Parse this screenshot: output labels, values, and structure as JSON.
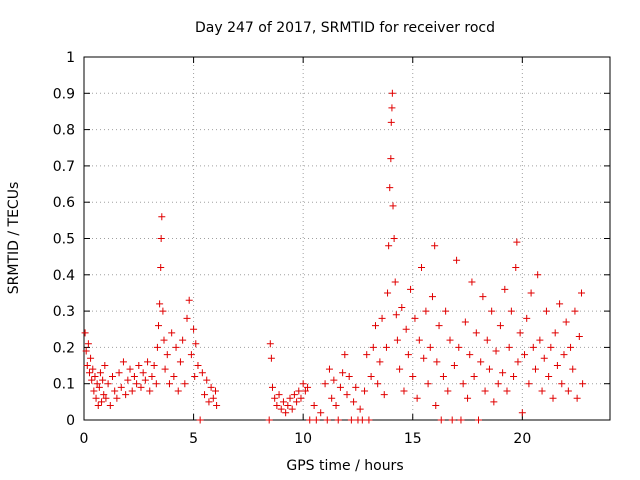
{
  "chart_data": {
    "type": "scatter",
    "title": "Day 247 of 2017, SRMTID for receiver rocd",
    "xlabel": "GPS time / hours",
    "ylabel": "SRMTID / TECUs",
    "xlim": [
      0,
      24
    ],
    "ylim": [
      0,
      1
    ],
    "xticks": [
      0,
      5,
      10,
      15,
      20
    ],
    "xtick_labels": [
      "0",
      "5",
      "10",
      "15",
      "20"
    ],
    "yticks": [
      0,
      0.1,
      0.2,
      0.3,
      0.4,
      0.5,
      0.6,
      0.7,
      0.8,
      0.9,
      1
    ],
    "ytick_labels": [
      "0",
      "0.1",
      "0.2",
      "0.3",
      "0.4",
      "0.5",
      "0.6",
      "0.7",
      "0.8",
      "0.9",
      "1"
    ],
    "grid": true,
    "legend": "none",
    "color": "#e00000",
    "series": [
      {
        "name": "SRMTID",
        "marker": "plus",
        "points": [
          [
            0.05,
            0.24
          ],
          [
            0.1,
            0.19
          ],
          [
            0.15,
            0.15
          ],
          [
            0.2,
            0.21
          ],
          [
            0.25,
            0.13
          ],
          [
            0.3,
            0.17
          ],
          [
            0.35,
            0.11
          ],
          [
            0.4,
            0.14
          ],
          [
            0.45,
            0.08
          ],
          [
            0.5,
            0.12
          ],
          [
            0.55,
            0.06
          ],
          [
            0.6,
            0.1
          ],
          [
            0.65,
            0.04
          ],
          [
            0.7,
            0.09
          ],
          [
            0.75,
            0.13
          ],
          [
            0.8,
            0.05
          ],
          [
            0.85,
            0.11
          ],
          [
            0.9,
            0.07
          ],
          [
            0.95,
            0.15
          ],
          [
            1.0,
            0.06
          ],
          [
            1.1,
            0.1
          ],
          [
            1.2,
            0.04
          ],
          [
            1.3,
            0.12
          ],
          [
            1.4,
            0.08
          ],
          [
            1.5,
            0.06
          ],
          [
            1.6,
            0.13
          ],
          [
            1.7,
            0.09
          ],
          [
            1.8,
            0.16
          ],
          [
            1.9,
            0.07
          ],
          [
            2.0,
            0.11
          ],
          [
            2.1,
            0.14
          ],
          [
            2.2,
            0.08
          ],
          [
            2.3,
            0.12
          ],
          [
            2.4,
            0.1
          ],
          [
            2.5,
            0.15
          ],
          [
            2.6,
            0.09
          ],
          [
            2.7,
            0.13
          ],
          [
            2.8,
            0.11
          ],
          [
            2.9,
            0.16
          ],
          [
            3.0,
            0.08
          ],
          [
            3.1,
            0.12
          ],
          [
            3.2,
            0.15
          ],
          [
            3.3,
            0.1
          ],
          [
            3.35,
            0.2
          ],
          [
            3.4,
            0.26
          ],
          [
            3.45,
            0.32
          ],
          [
            3.5,
            0.42
          ],
          [
            3.52,
            0.5
          ],
          [
            3.55,
            0.56
          ],
          [
            3.6,
            0.3
          ],
          [
            3.65,
            0.22
          ],
          [
            3.7,
            0.14
          ],
          [
            3.8,
            0.18
          ],
          [
            3.9,
            0.1
          ],
          [
            4.0,
            0.24
          ],
          [
            4.1,
            0.12
          ],
          [
            4.2,
            0.2
          ],
          [
            4.3,
            0.08
          ],
          [
            4.4,
            0.16
          ],
          [
            4.5,
            0.22
          ],
          [
            4.6,
            0.1
          ],
          [
            4.7,
            0.28
          ],
          [
            4.8,
            0.33
          ],
          [
            4.9,
            0.18
          ],
          [
            5.0,
            0.25
          ],
          [
            5.05,
            0.12
          ],
          [
            5.1,
            0.21
          ],
          [
            5.2,
            0.15
          ],
          [
            5.3,
            0.0
          ],
          [
            5.4,
            0.13
          ],
          [
            5.5,
            0.07
          ],
          [
            5.6,
            0.11
          ],
          [
            5.7,
            0.05
          ],
          [
            5.8,
            0.09
          ],
          [
            5.9,
            0.06
          ],
          [
            6.0,
            0.08
          ],
          [
            6.05,
            0.04
          ],
          [
            8.45,
            0.0
          ],
          [
            8.5,
            0.21
          ],
          [
            8.55,
            0.17
          ],
          [
            8.6,
            0.09
          ],
          [
            8.7,
            0.06
          ],
          [
            8.8,
            0.04
          ],
          [
            8.9,
            0.07
          ],
          [
            9.0,
            0.03
          ],
          [
            9.1,
            0.05
          ],
          [
            9.2,
            0.02
          ],
          [
            9.3,
            0.04
          ],
          [
            9.4,
            0.06
          ],
          [
            9.5,
            0.03
          ],
          [
            9.6,
            0.07
          ],
          [
            9.7,
            0.05
          ],
          [
            9.8,
            0.08
          ],
          [
            9.9,
            0.06
          ],
          [
            10.0,
            0.1
          ],
          [
            10.1,
            0.08
          ],
          [
            10.2,
            0.09
          ],
          [
            10.3,
            0.0
          ],
          [
            10.5,
            0.04
          ],
          [
            10.6,
            0.0
          ],
          [
            10.8,
            0.02
          ],
          [
            11.0,
            0.1
          ],
          [
            11.1,
            0.0
          ],
          [
            11.2,
            0.14
          ],
          [
            11.3,
            0.06
          ],
          [
            11.4,
            0.11
          ],
          [
            11.5,
            0.04
          ],
          [
            11.6,
            0.0
          ],
          [
            11.7,
            0.09
          ],
          [
            11.8,
            0.13
          ],
          [
            11.9,
            0.18
          ],
          [
            12.0,
            0.07
          ],
          [
            12.1,
            0.12
          ],
          [
            12.2,
            0.0
          ],
          [
            12.3,
            0.05
          ],
          [
            12.4,
            0.09
          ],
          [
            12.5,
            0.0
          ],
          [
            12.6,
            0.03
          ],
          [
            12.7,
            0.0
          ],
          [
            12.8,
            0.08
          ],
          [
            12.9,
            0.18
          ],
          [
            13.0,
            0.0
          ],
          [
            13.1,
            0.12
          ],
          [
            13.2,
            0.2
          ],
          [
            13.3,
            0.26
          ],
          [
            13.4,
            0.1
          ],
          [
            13.5,
            0.16
          ],
          [
            13.6,
            0.28
          ],
          [
            13.7,
            0.07
          ],
          [
            13.8,
            0.2
          ],
          [
            13.85,
            0.35
          ],
          [
            13.9,
            0.48
          ],
          [
            13.95,
            0.64
          ],
          [
            14.0,
            0.72
          ],
          [
            14.02,
            0.82
          ],
          [
            14.05,
            0.86
          ],
          [
            14.07,
            0.9
          ],
          [
            14.1,
            0.59
          ],
          [
            14.15,
            0.5
          ],
          [
            14.2,
            0.38
          ],
          [
            14.25,
            0.29
          ],
          [
            14.3,
            0.22
          ],
          [
            14.4,
            0.14
          ],
          [
            14.5,
            0.31
          ],
          [
            14.6,
            0.08
          ],
          [
            14.7,
            0.25
          ],
          [
            14.8,
            0.18
          ],
          [
            14.9,
            0.36
          ],
          [
            15.0,
            0.12
          ],
          [
            15.1,
            0.28
          ],
          [
            15.2,
            0.06
          ],
          [
            15.3,
            0.22
          ],
          [
            15.4,
            0.42
          ],
          [
            15.5,
            0.17
          ],
          [
            15.6,
            0.3
          ],
          [
            15.7,
            0.1
          ],
          [
            15.8,
            0.2
          ],
          [
            15.9,
            0.34
          ],
          [
            16.0,
            0.48
          ],
          [
            16.05,
            0.04
          ],
          [
            16.1,
            0.16
          ],
          [
            16.2,
            0.26
          ],
          [
            16.3,
            0.0
          ],
          [
            16.4,
            0.12
          ],
          [
            16.5,
            0.3
          ],
          [
            16.6,
            0.08
          ],
          [
            16.7,
            0.22
          ],
          [
            16.8,
            0.0
          ],
          [
            16.9,
            0.15
          ],
          [
            17.0,
            0.44
          ],
          [
            17.1,
            0.2
          ],
          [
            17.2,
            0.0
          ],
          [
            17.3,
            0.1
          ],
          [
            17.4,
            0.27
          ],
          [
            17.5,
            0.06
          ],
          [
            17.6,
            0.18
          ],
          [
            17.7,
            0.38
          ],
          [
            17.8,
            0.12
          ],
          [
            17.9,
            0.24
          ],
          [
            18.0,
            0.0
          ],
          [
            18.1,
            0.16
          ],
          [
            18.2,
            0.34
          ],
          [
            18.3,
            0.08
          ],
          [
            18.4,
            0.22
          ],
          [
            18.5,
            0.14
          ],
          [
            18.6,
            0.3
          ],
          [
            18.7,
            0.05
          ],
          [
            18.8,
            0.19
          ],
          [
            18.9,
            0.1
          ],
          [
            19.0,
            0.26
          ],
          [
            19.1,
            0.13
          ],
          [
            19.2,
            0.36
          ],
          [
            19.3,
            0.08
          ],
          [
            19.4,
            0.2
          ],
          [
            19.5,
            0.3
          ],
          [
            19.6,
            0.12
          ],
          [
            19.7,
            0.42
          ],
          [
            19.75,
            0.49
          ],
          [
            19.8,
            0.16
          ],
          [
            19.9,
            0.24
          ],
          [
            20.0,
            0.02
          ],
          [
            20.1,
            0.18
          ],
          [
            20.2,
            0.28
          ],
          [
            20.3,
            0.1
          ],
          [
            20.4,
            0.35
          ],
          [
            20.5,
            0.2
          ],
          [
            20.6,
            0.14
          ],
          [
            20.7,
            0.4
          ],
          [
            20.8,
            0.22
          ],
          [
            20.9,
            0.08
          ],
          [
            21.0,
            0.17
          ],
          [
            21.1,
            0.3
          ],
          [
            21.2,
            0.12
          ],
          [
            21.3,
            0.2
          ],
          [
            21.4,
            0.06
          ],
          [
            21.5,
            0.24
          ],
          [
            21.6,
            0.15
          ],
          [
            21.7,
            0.32
          ],
          [
            21.8,
            0.1
          ],
          [
            21.9,
            0.18
          ],
          [
            22.0,
            0.27
          ],
          [
            22.1,
            0.08
          ],
          [
            22.2,
            0.2
          ],
          [
            22.3,
            0.14
          ],
          [
            22.4,
            0.3
          ],
          [
            22.5,
            0.06
          ],
          [
            22.6,
            0.23
          ],
          [
            22.7,
            0.35
          ],
          [
            22.75,
            0.1
          ]
        ]
      }
    ]
  }
}
